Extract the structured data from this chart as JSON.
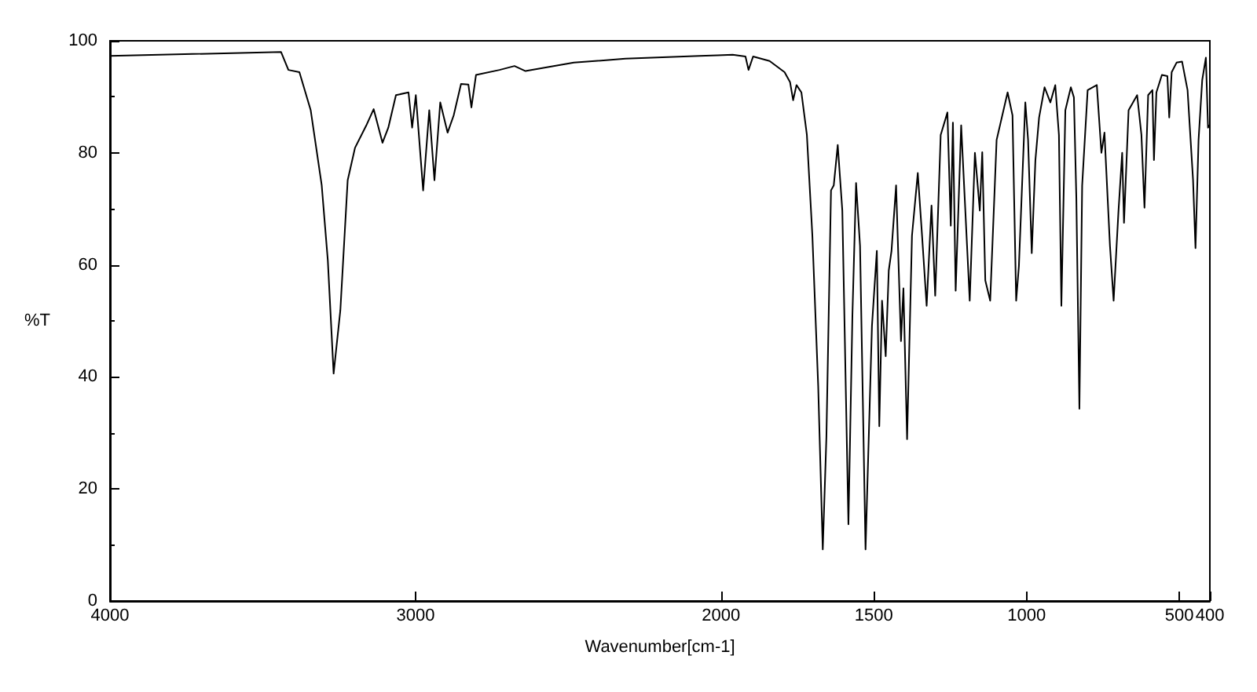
{
  "chart_data": {
    "type": "line",
    "xlabel": "Wavenumber[cm-1]",
    "ylabel": "%T",
    "color": "#000000",
    "xlim": [
      4000,
      400
    ],
    "xticks": [
      4000,
      3000,
      2000,
      1500,
      1000,
      500,
      400
    ],
    "ylim": [
      0,
      100
    ],
    "yticks": [
      0,
      20,
      40,
      60,
      80,
      100
    ],
    "grid": false,
    "x": [
      4000,
      3440,
      3416,
      3380,
      3343,
      3307,
      3287,
      3268,
      3246,
      3222,
      3198,
      3161,
      3137,
      3108,
      3089,
      3064,
      3023,
      3011,
      2999,
      2975,
      2955,
      2938,
      2919,
      2895,
      2875,
      2851,
      2827,
      2817,
      2802,
      2725,
      2676,
      2640,
      2482,
      2313,
      2070,
      2011,
      1962,
      1920,
      1910,
      1895,
      1841,
      1792,
      1774,
      1764,
      1753,
      1737,
      1719,
      1701,
      1682,
      1667,
      1655,
      1640,
      1631,
      1618,
      1603,
      1583,
      1570,
      1558,
      1545,
      1527,
      1506,
      1490,
      1482,
      1473,
      1461,
      1451,
      1442,
      1427,
      1411,
      1403,
      1391,
      1375,
      1356,
      1342,
      1327,
      1311,
      1299,
      1281,
      1259,
      1248,
      1241,
      1232,
      1214,
      1186,
      1169,
      1153,
      1145,
      1135,
      1119,
      1098,
      1062,
      1046,
      1034,
      1025,
      1004,
      995,
      983,
      971,
      959,
      941,
      922,
      906,
      894,
      886,
      873,
      855,
      845,
      837,
      827,
      818,
      800,
      770,
      755,
      745,
      727,
      715,
      699,
      687,
      681,
      666,
      638,
      624,
      614,
      602,
      588,
      583,
      575,
      557,
      539,
      533,
      525,
      509,
      491,
      473,
      455,
      447,
      437,
      425,
      413,
      406,
      400
    ],
    "values": [
      97.3,
      98,
      94.8,
      94.4,
      87.6,
      74.2,
      60.8,
      40.6,
      51.9,
      75.1,
      80.9,
      84.9,
      87.8,
      81.8,
      84.5,
      90.3,
      90.8,
      84.5,
      90.3,
      73.3,
      87.6,
      75.1,
      89,
      83.6,
      86.7,
      92.3,
      92.2,
      88.1,
      93.9,
      94.8,
      95.5,
      94.6,
      96.1,
      96.8,
      97.3,
      97.4,
      97.5,
      97.2,
      94.8,
      97.2,
      96.4,
      94.4,
      92.6,
      89.4,
      92.1,
      90.8,
      83.2,
      65.2,
      38.4,
      9.2,
      29.4,
      73.3,
      74.2,
      81.4,
      69.7,
      13.7,
      50.9,
      74.6,
      63.4,
      9.2,
      49.1,
      62.5,
      31.2,
      53.6,
      43.7,
      59,
      62.5,
      74.2,
      46.4,
      55.8,
      28.9,
      65.2,
      76.4,
      65.2,
      52.7,
      70.6,
      54.5,
      83.2,
      87.2,
      67,
      85.4,
      55.4,
      84.9,
      53.6,
      80,
      69.7,
      80.1,
      57.2,
      53.6,
      82.3,
      90.8,
      86.7,
      53.6,
      59.8,
      89,
      82.3,
      62.1,
      78.7,
      86.3,
      91.7,
      89,
      92.1,
      83.2,
      52.7,
      87.6,
      91.7,
      89.9,
      71.9,
      34.3,
      74.2,
      91.2,
      92.1,
      80,
      83.6,
      63.4,
      53.6,
      69.7,
      80,
      67.5,
      87.6,
      90.3,
      83.2,
      70.2,
      90.3,
      91.2,
      78.7,
      90.8,
      93.9,
      93.7,
      86.3,
      94.4,
      96.1,
      96.3,
      91.2,
      75.1,
      63,
      82.3,
      93,
      97,
      84.5,
      85
    ]
  }
}
